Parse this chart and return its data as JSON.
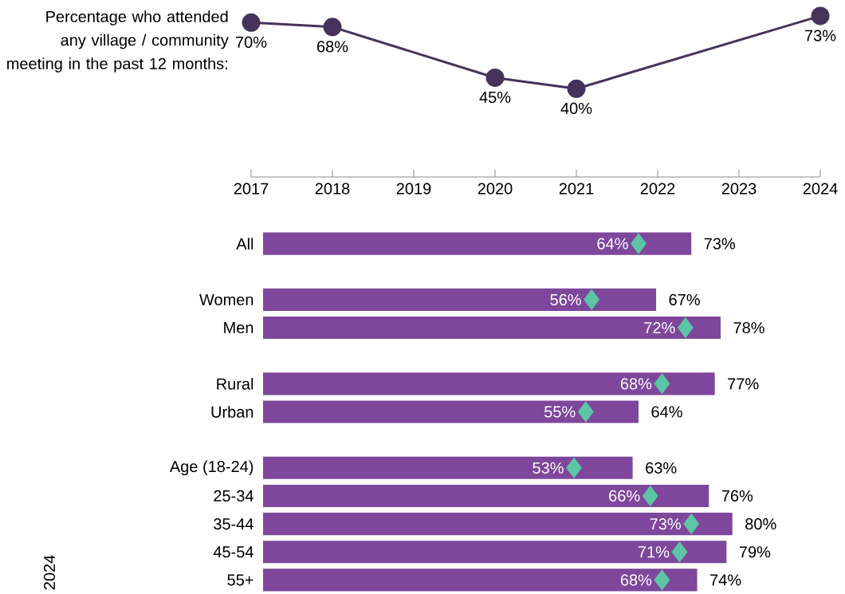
{
  "chart_data": [
    {
      "type": "line",
      "ylabel": "Percentage who attended any village / community meeting in the past 12 months:",
      "x": [
        2017,
        2018,
        2020,
        2021,
        2024
      ],
      "values": [
        70,
        68,
        45,
        40,
        73
      ],
      "value_labels": [
        "70%",
        "68%",
        "45%",
        "40%",
        "73%"
      ],
      "color": "#45335c",
      "marker": "circle",
      "line_style": "solid",
      "xlim": [
        2017,
        2024
      ],
      "xticks": [
        2017,
        2018,
        2019,
        2020,
        2021,
        2022,
        2023,
        2024
      ],
      "tick_labels": "x"
    },
    {
      "type": "bar",
      "orientation": "horizontal",
      "categories": [
        "All",
        null,
        "Women",
        "Men",
        null,
        "Rural",
        "Urban",
        null,
        "Age (18-24)",
        "25-34",
        "35-44",
        "45-54",
        "55+"
      ],
      "tick_labels": "y",
      "annotations": [
        "2024"
      ],
      "series": [
        {
          "type": "bar",
          "color": "#7e479b",
          "values": [
            73,
            null,
            67,
            78,
            null,
            77,
            64,
            null,
            63,
            76,
            80,
            79,
            74
          ],
          "value_labels": [
            "73%",
            null,
            "67%",
            "78%",
            null,
            "77%",
            "64%",
            null,
            "63%",
            "76%",
            "80%",
            "79%",
            "74%"
          ]
        },
        {
          "type": "scatter",
          "color": "#5cc5a6",
          "marker": "diamond",
          "values": [
            64,
            null,
            56,
            72,
            null,
            68,
            55,
            null,
            53,
            66,
            73,
            71,
            68
          ],
          "value_labels": [
            "64%",
            null,
            "56%",
            "72%",
            null,
            "68%",
            "55%",
            null,
            "53%",
            "66%",
            "73%",
            "71%",
            "68%"
          ]
        }
      ]
    }
  ]
}
